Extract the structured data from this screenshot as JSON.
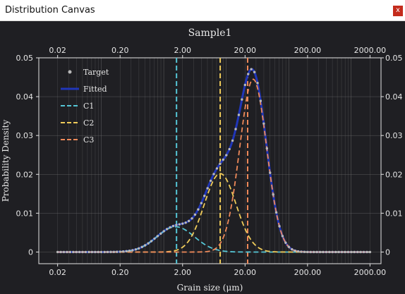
{
  "window": {
    "title": "Distribution Canvas",
    "close_label": "x"
  },
  "colors": {
    "background": "#1f1f23",
    "target": "#b8b8b8",
    "fitted": "#2036b8",
    "c1": "#55c6d6",
    "c2": "#f0cc5a",
    "c3": "#f08a5a",
    "grid": "#6a6a6a",
    "axes": "#e6e6e6"
  },
  "chart_data": {
    "type": "line",
    "title": "Sample1",
    "xlabel": "Grain size (μm)",
    "ylabel": "Probability Density",
    "x_scale": "log",
    "xlim": [
      0.01,
      3000
    ],
    "ylim": [
      -0.003,
      0.05
    ],
    "x_ticks": [
      0.02,
      0.2,
      2,
      20,
      200,
      2000
    ],
    "x_tick_labels": [
      "0.02",
      "0.20",
      "2.00",
      "20.00",
      "200.00",
      "2000.00"
    ],
    "y_ticks": [
      0,
      0.01,
      0.02,
      0.03,
      0.04,
      0.05
    ],
    "y_tick_labels": [
      "0",
      "0.01",
      "0.02",
      "0.03",
      "0.04",
      "0.05"
    ],
    "grid": true,
    "legend_position": "top-left",
    "legend": [
      "Target",
      "Fitted",
      "C1",
      "C2",
      "C3"
    ],
    "components": [
      {
        "name": "C1",
        "mode": 1.55,
        "sigma_log10": 0.3,
        "peak": 0.0065,
        "vline": 1.6
      },
      {
        "name": "C2",
        "mode": 8.0,
        "sigma_log10": 0.255,
        "peak": 0.0202,
        "vline": 8.0
      },
      {
        "name": "C3",
        "mode": 27.0,
        "sigma_log10": 0.215,
        "peak": 0.0445,
        "vline": 22.0
      }
    ],
    "fitted_peak": {
      "x": 25,
      "y": 0.0465
    }
  }
}
